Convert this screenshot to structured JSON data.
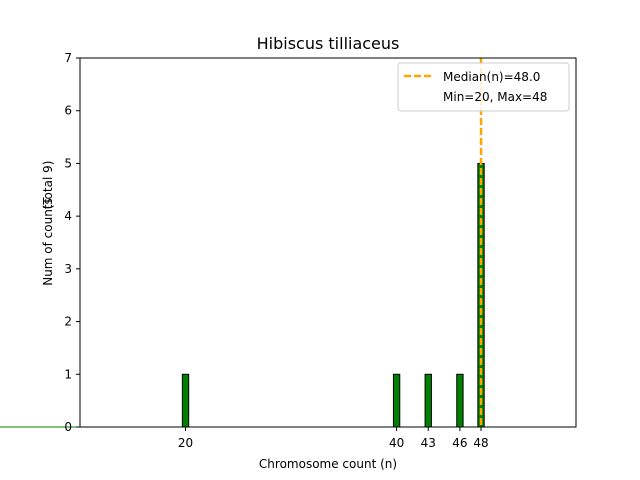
{
  "chart_data": {
    "type": "bar",
    "title": "Hibiscus tilliaceus",
    "xlabel": "Chromosome count (n)",
    "ylabel_main": "Num of counts",
    "ylabel_total": "(Total 9)",
    "xlim": [
      10,
      57
    ],
    "ylim": [
      0,
      7
    ],
    "yticks": [
      0,
      1,
      2,
      3,
      4,
      5,
      6,
      7
    ],
    "xticks": [
      20,
      40,
      43,
      46,
      48
    ],
    "bar_width": 0.6,
    "bars": [
      {
        "x": 20,
        "count": 1
      },
      {
        "x": 40,
        "count": 1
      },
      {
        "x": 43,
        "count": 1
      },
      {
        "x": 46,
        "count": 1
      },
      {
        "x": 48,
        "count": 5
      }
    ],
    "median": 48.0,
    "bar_color": "#008000",
    "bar_edge_color": "#000000",
    "median_color": "#FFA500",
    "grid": false,
    "legend": {
      "placement": "top-right",
      "entries": [
        {
          "label": "Median(n)=48.0",
          "style": "dashed-line"
        },
        {
          "label": "Min=20, Max=48",
          "style": "none"
        }
      ]
    }
  }
}
